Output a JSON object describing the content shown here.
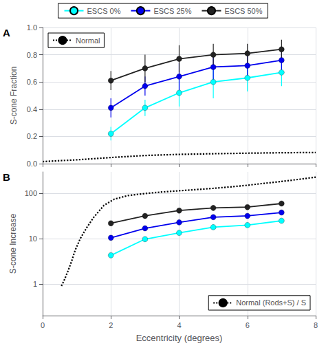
{
  "chart_data": [
    {
      "type": "line",
      "annotations": [
        "A"
      ],
      "ylabel": "S-cone Fraction",
      "xlim": [
        0,
        8
      ],
      "xticks": [
        0,
        2,
        4,
        6,
        8
      ],
      "ylim": [
        0,
        1.0
      ],
      "yticks": [
        {
          "value": 0,
          "label": "0.0"
        },
        0.2,
        0.4,
        0.6,
        0.8,
        {
          "value": 1.0,
          "label": "1.0"
        }
      ],
      "grid": true,
      "legend": "top",
      "tick_labels": "y",
      "series": [
        {
          "name": "Normal",
          "color": "#000000",
          "line_style": "dotted",
          "marker": "none",
          "x": [
            0.0,
            0.5,
            1.0,
            2.0,
            3.0,
            4.0,
            5.0,
            6.0,
            7.0,
            8.0
          ],
          "values": [
            0.015,
            0.022,
            0.028,
            0.045,
            0.06,
            0.068,
            0.073,
            0.077,
            0.08,
            0.082
          ]
        },
        {
          "name": "ESCS 0%",
          "color": "#00FFFF",
          "line_style": "solid",
          "marker": "circle",
          "x": [
            2,
            3,
            4,
            5,
            6,
            7
          ],
          "values": [
            0.22,
            0.41,
            0.52,
            0.6,
            0.63,
            0.67
          ],
          "errors": [
            0.05,
            0.06,
            0.1,
            0.12,
            0.1,
            0.1
          ]
        },
        {
          "name": "ESCS 25%",
          "color": "#0000EE",
          "line_style": "solid",
          "marker": "circle",
          "x": [
            2,
            3,
            4,
            5,
            6,
            7
          ],
          "values": [
            0.41,
            0.57,
            0.64,
            0.71,
            0.72,
            0.76
          ],
          "errors": [
            0.07,
            0.07,
            0.1,
            0.1,
            0.1,
            0.09
          ]
        },
        {
          "name": "ESCS 50%",
          "color": "#222222",
          "line_style": "solid",
          "marker": "circle",
          "x": [
            2,
            3,
            4,
            5,
            6,
            7
          ],
          "values": [
            0.61,
            0.7,
            0.77,
            0.8,
            0.81,
            0.84
          ],
          "errors": [
            0.07,
            0.1,
            0.1,
            0.08,
            0.07,
            0.07
          ]
        }
      ]
    },
    {
      "type": "line",
      "annotations": [
        "B"
      ],
      "xlabel": "Eccentricity (degrees)",
      "ylabel": "S-cone Increase",
      "xlim": [
        0,
        8
      ],
      "xticks": [
        0,
        2,
        4,
        6,
        8
      ],
      "ylim": [
        0.2,
        300
      ],
      "yticks": [
        1,
        10,
        100
      ],
      "log": "y",
      "grid": true,
      "legend": "top",
      "series": [
        {
          "name": "Normal (Rods+S) / S",
          "color": "#000000",
          "line_style": "dotted",
          "marker": "none",
          "x": [
            0.55,
            0.65,
            0.75,
            0.85,
            0.95,
            1.1,
            1.3,
            1.5,
            1.8,
            2.1,
            2.5,
            3.0,
            3.5,
            4.0,
            4.5,
            5.0,
            5.5,
            6.0,
            6.5,
            7.0,
            7.5,
            8.0
          ],
          "values": [
            0.9,
            1.3,
            2.0,
            3.2,
            5.5,
            10.0,
            18.0,
            30.0,
            55.0,
            75.0,
            90.0,
            100.0,
            108.0,
            115.0,
            122.0,
            130.0,
            140.0,
            152.0,
            168.0,
            185.0,
            205.0,
            230.0
          ]
        },
        {
          "name": "ESCS 0%",
          "color": "#00FFFF",
          "line_style": "solid",
          "marker": "circle",
          "x": [
            2,
            3,
            4,
            5,
            6,
            7
          ],
          "values": [
            4.3,
            9.8,
            13.5,
            18.0,
            20.0,
            25.0
          ]
        },
        {
          "name": "ESCS 25%",
          "color": "#0000EE",
          "line_style": "solid",
          "marker": "circle",
          "x": [
            2,
            3,
            4,
            5,
            6,
            7
          ],
          "values": [
            10.5,
            17.0,
            23.0,
            30.0,
            32.0,
            38.0
          ]
        },
        {
          "name": "ESCS 50%",
          "color": "#222222",
          "line_style": "solid",
          "marker": "circle",
          "x": [
            2,
            3,
            4,
            5,
            6,
            7
          ],
          "values": [
            22.0,
            32.0,
            42.0,
            48.0,
            50.0,
            60.0
          ]
        }
      ]
    }
  ]
}
